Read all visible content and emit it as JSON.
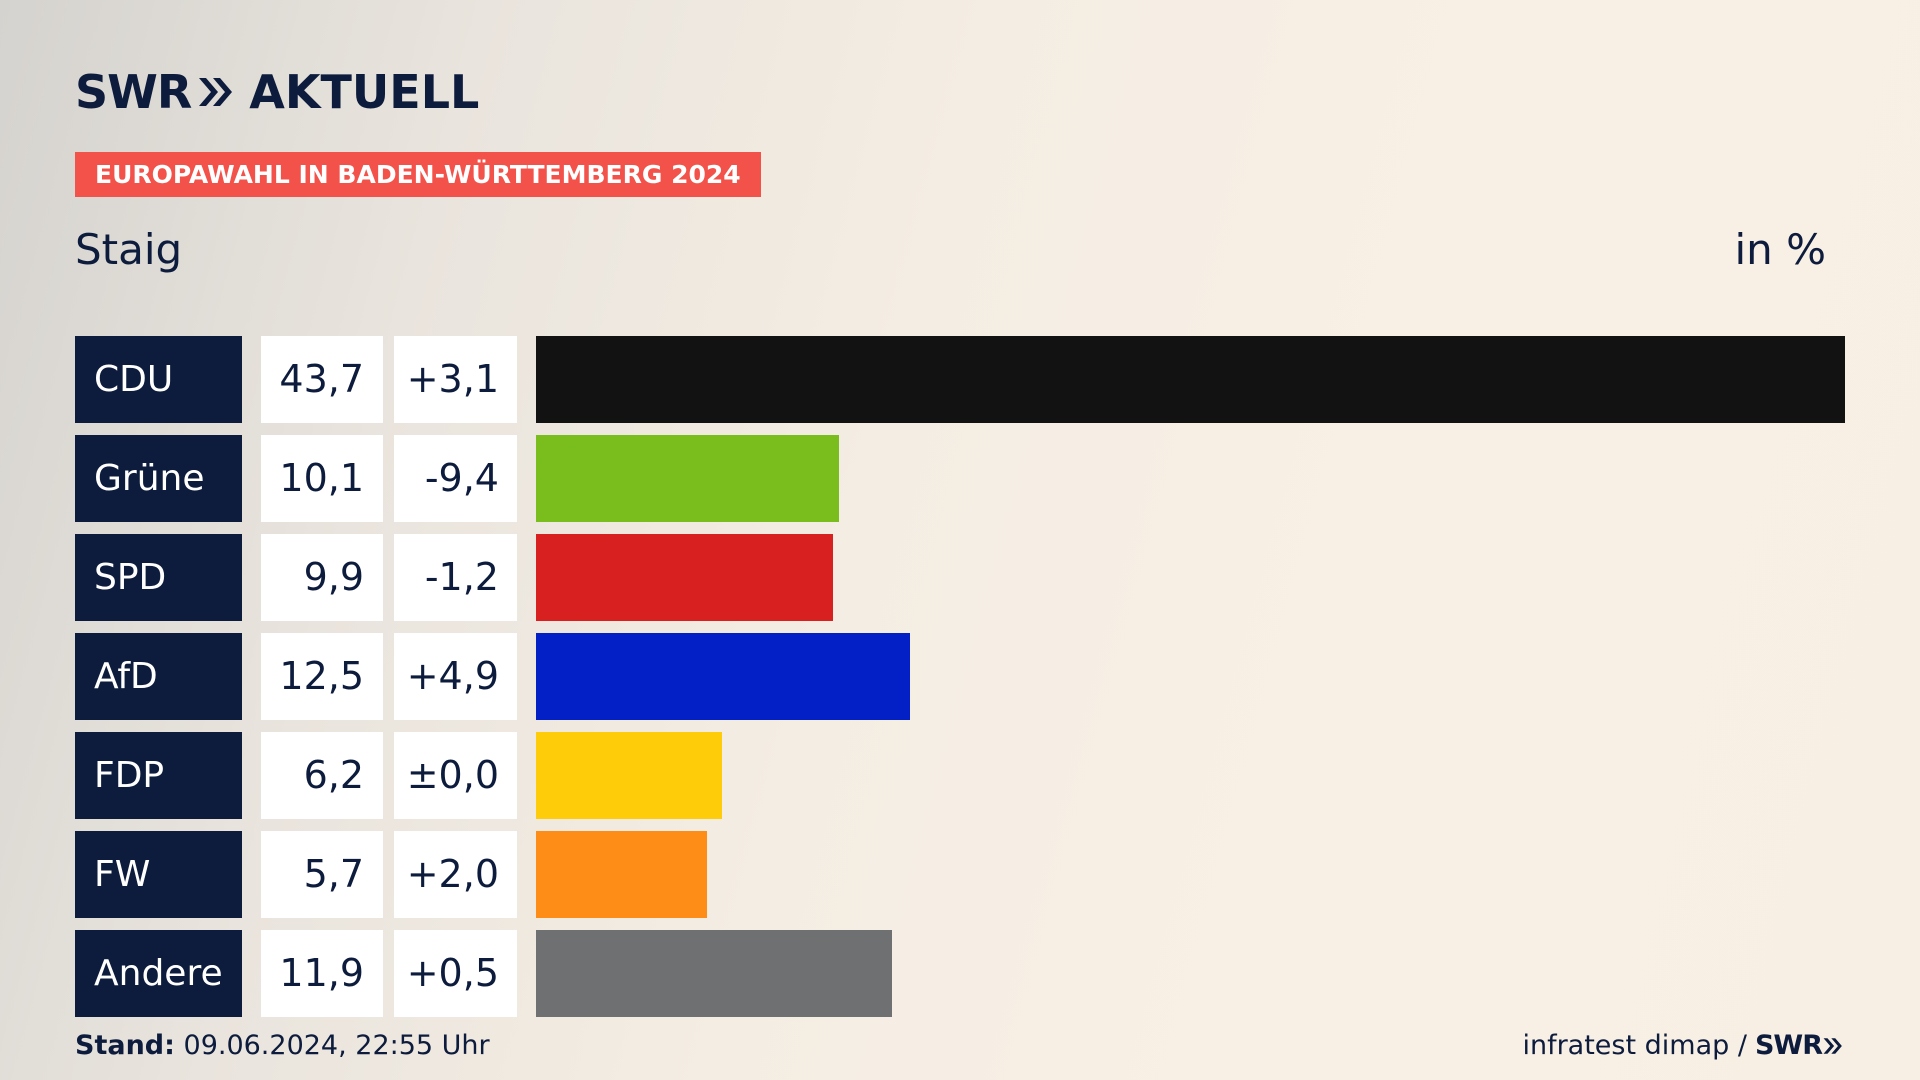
{
  "brand": {
    "name": "SWR",
    "product": "AKTUELL"
  },
  "banner": "EUROPAWAHL IN BADEN-WÜRTTEMBERG 2024",
  "region": "Staig",
  "unit": "in %",
  "footer": {
    "stand_label": "Stand:",
    "stand_value": "09.06.2024, 22:55 Uhr",
    "source": "infratest dimap /",
    "source_brand": "SWR"
  },
  "colors": {
    "navy": "#0d1c3d",
    "banner": "#f3524a",
    "CDU": "#121212",
    "Grüne": "#7abe1e",
    "SPD": "#d7201f",
    "AfD": "#0320c6",
    "FDP": "#ffcc0a",
    "FW": "#fd8d16",
    "Andere": "#6f7072"
  },
  "chart_data": {
    "type": "bar",
    "orientation": "horizontal",
    "categories": [
      "CDU",
      "Grüne",
      "SPD",
      "AfD",
      "FDP",
      "FW",
      "Andere"
    ],
    "values": [
      43.7,
      10.1,
      9.9,
      12.5,
      6.2,
      5.7,
      11.9
    ],
    "value_labels": [
      "43,7",
      "10,1",
      "9,9",
      "12,5",
      "6,2",
      "5,7",
      "11,9"
    ],
    "changes": [
      3.1,
      -9.4,
      -1.2,
      4.9,
      0.0,
      2.0,
      0.5
    ],
    "change_labels": [
      "+3,1",
      "-9,4",
      "-1,2",
      "+4,9",
      "±0,0",
      "+2,0",
      "+0,5"
    ],
    "xlim": [
      0,
      43.7
    ],
    "title": "",
    "xlabel": "",
    "ylabel": ""
  }
}
